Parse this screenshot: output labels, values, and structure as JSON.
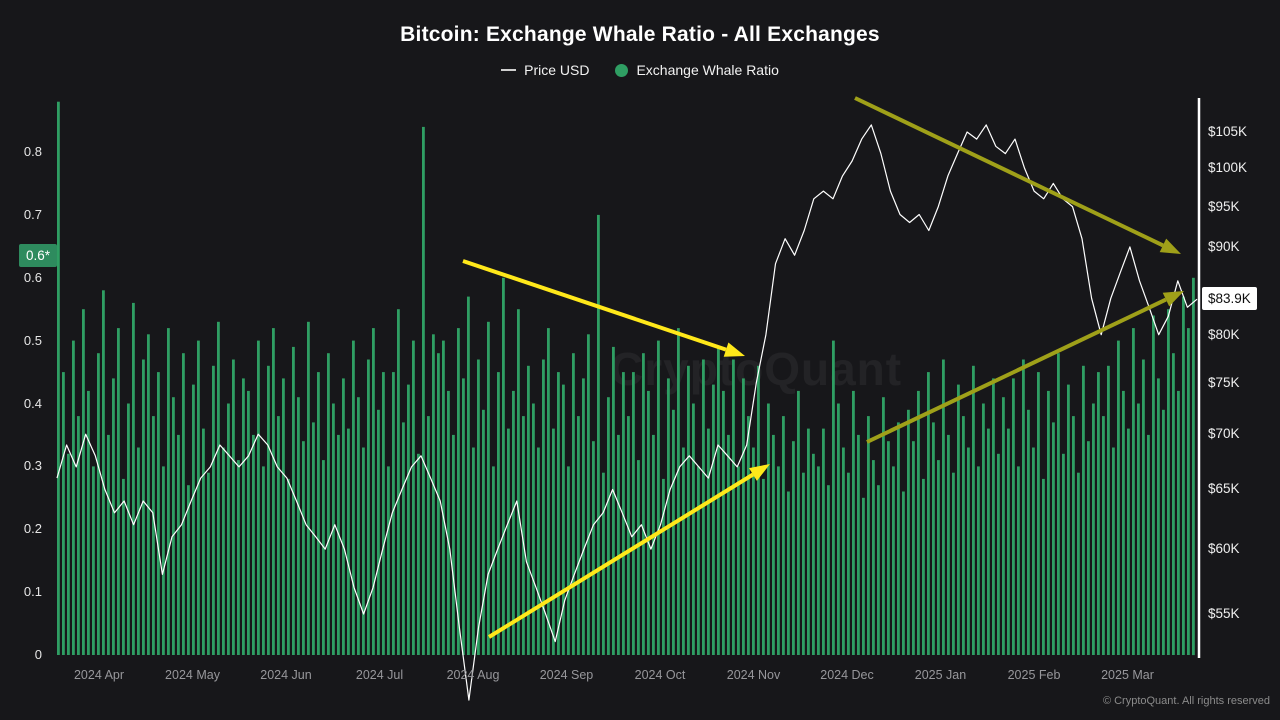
{
  "title": "Bitcoin: Exchange Whale Ratio - All Exchanges",
  "legend": {
    "price": "Price USD",
    "whale": "Exchange Whale Ratio"
  },
  "badges": {
    "ratio": "0.6*",
    "price": "$83.9K"
  },
  "watermark": "CryptoQuant",
  "copyright": "© CryptoQuant. All rights reserved",
  "colors": {
    "background": "#17171a",
    "bar": "#2f9e63",
    "price_line": "#ffffff",
    "axis_line": "#ffffff",
    "yellow_arrow": "#ffe81a",
    "olive_arrow": "#9fa019",
    "ratio_badge_bg": "#2e8b5e",
    "price_badge_bg": "#ffffff"
  },
  "chart_data": {
    "type": "bar",
    "title": "Bitcoin: Exchange Whale Ratio - All Exchanges",
    "grid": false,
    "legend_position": "top",
    "x_categories": [
      "2024 Apr",
      "2024 May",
      "2024 Jun",
      "2024 Jul",
      "2024 Aug",
      "2024 Sep",
      "2024 Oct",
      "2024 Nov",
      "2024 Dec",
      "2025 Jan",
      "2025 Feb",
      "2025 Mar"
    ],
    "left_axis": {
      "label": "Exchange Whale Ratio",
      "scale": "linear",
      "range": [
        0,
        0.88
      ],
      "ticks": [
        {
          "label": "0",
          "value": 0
        },
        {
          "label": "0.1",
          "value": 0.1
        },
        {
          "label": "0.2",
          "value": 0.2
        },
        {
          "label": "0.3",
          "value": 0.3
        },
        {
          "label": "0.4",
          "value": 0.4
        },
        {
          "label": "0.5",
          "value": 0.5
        },
        {
          "label": "0.6",
          "value": 0.6
        },
        {
          "label": "0.7",
          "value": 0.7
        },
        {
          "label": "0.8",
          "value": 0.8
        }
      ]
    },
    "right_axis": {
      "label": "Price USD",
      "scale": "log",
      "range_usd_k": [
        53,
        108
      ],
      "ticks": [
        {
          "label": "$105K",
          "value": 105
        },
        {
          "label": "$100K",
          "value": 100
        },
        {
          "label": "$95K",
          "value": 95
        },
        {
          "label": "$90K",
          "value": 90
        },
        {
          "label": "$80K",
          "value": 80
        },
        {
          "label": "$75K",
          "value": 75
        },
        {
          "label": "$70K",
          "value": 70
        },
        {
          "label": "$65K",
          "value": 65
        },
        {
          "label": "$60K",
          "value": 60
        },
        {
          "label": "$55K",
          "value": 55
        }
      ]
    },
    "latest": {
      "whale_ratio": 0.635,
      "price_usd_k": 83.9
    },
    "series": [
      {
        "name": "Exchange Whale Ratio",
        "type": "bar",
        "axis": "left",
        "values": [
          0.88,
          0.45,
          0.32,
          0.5,
          0.38,
          0.55,
          0.42,
          0.3,
          0.48,
          0.58,
          0.35,
          0.44,
          0.52,
          0.28,
          0.4,
          0.56,
          0.33,
          0.47,
          0.51,
          0.38,
          0.45,
          0.3,
          0.52,
          0.41,
          0.35,
          0.48,
          0.27,
          0.43,
          0.5,
          0.36,
          0.29,
          0.46,
          0.53,
          0.33,
          0.4,
          0.47,
          0.31,
          0.44,
          0.42,
          0.35,
          0.5,
          0.3,
          0.46,
          0.52,
          0.38,
          0.44,
          0.28,
          0.49,
          0.41,
          0.34,
          0.53,
          0.37,
          0.45,
          0.31,
          0.48,
          0.4,
          0.35,
          0.44,
          0.36,
          0.5,
          0.41,
          0.33,
          0.47,
          0.52,
          0.39,
          0.45,
          0.3,
          0.45,
          0.55,
          0.37,
          0.43,
          0.5,
          0.32,
          0.84,
          0.38,
          0.51,
          0.48,
          0.5,
          0.42,
          0.35,
          0.52,
          0.44,
          0.57,
          0.33,
          0.47,
          0.39,
          0.53,
          0.3,
          0.45,
          0.6,
          0.36,
          0.42,
          0.55,
          0.38,
          0.46,
          0.4,
          0.33,
          0.47,
          0.52,
          0.36,
          0.45,
          0.43,
          0.3,
          0.48,
          0.38,
          0.44,
          0.51,
          0.34,
          0.7,
          0.29,
          0.41,
          0.49,
          0.35,
          0.45,
          0.38,
          0.45,
          0.31,
          0.48,
          0.42,
          0.35,
          0.5,
          0.28,
          0.44,
          0.39,
          0.52,
          0.33,
          0.46,
          0.4,
          0.3,
          0.47,
          0.36,
          0.43,
          0.49,
          0.42,
          0.35,
          0.47,
          0.3,
          0.44,
          0.38,
          0.33,
          0.46,
          0.28,
          0.4,
          0.35,
          0.3,
          0.38,
          0.26,
          0.34,
          0.42,
          0.29,
          0.36,
          0.32,
          0.3,
          0.36,
          0.27,
          0.5,
          0.4,
          0.33,
          0.29,
          0.42,
          0.35,
          0.25,
          0.38,
          0.31,
          0.27,
          0.41,
          0.34,
          0.3,
          0.37,
          0.26,
          0.39,
          0.34,
          0.42,
          0.28,
          0.45,
          0.37,
          0.31,
          0.47,
          0.35,
          0.29,
          0.43,
          0.38,
          0.33,
          0.46,
          0.3,
          0.4,
          0.36,
          0.44,
          0.32,
          0.41,
          0.36,
          0.44,
          0.3,
          0.47,
          0.39,
          0.33,
          0.45,
          0.28,
          0.42,
          0.37,
          0.48,
          0.32,
          0.43,
          0.38,
          0.29,
          0.46,
          0.34,
          0.4,
          0.45,
          0.38,
          0.46,
          0.33,
          0.5,
          0.42,
          0.36,
          0.52,
          0.4,
          0.47,
          0.35,
          0.54,
          0.44,
          0.39,
          0.55,
          0.48,
          0.42,
          0.57,
          0.52,
          0.6
        ]
      },
      {
        "name": "Price USD",
        "type": "line",
        "axis": "right",
        "values_usd_k": [
          66,
          69,
          67,
          70,
          68,
          65,
          63,
          64,
          62,
          64,
          63,
          58,
          61,
          62,
          64,
          66,
          67,
          69,
          68,
          67,
          68,
          70,
          69,
          67,
          66,
          64,
          62,
          61,
          60,
          62,
          60,
          57,
          55,
          57,
          60,
          63,
          65,
          67,
          68,
          66,
          64,
          60,
          54,
          49,
          54,
          58,
          60,
          62,
          64,
          59,
          57,
          55,
          53,
          56,
          58,
          60,
          62,
          63,
          65,
          63,
          61,
          62,
          60,
          62,
          65,
          67,
          68,
          67,
          66,
          69,
          68,
          67,
          69,
          75,
          80,
          88,
          91,
          89,
          92,
          96,
          97,
          96,
          99,
          101,
          104,
          106,
          102,
          97,
          94,
          93,
          94,
          92,
          95,
          99,
          102,
          105,
          104,
          106,
          103,
          102,
          104,
          100,
          97,
          96,
          98,
          96,
          95,
          91,
          84,
          80,
          84,
          87,
          90,
          86,
          83,
          80,
          82,
          86,
          83,
          83.9
        ]
      }
    ],
    "annotations": [
      {
        "name": "yellow-arrow-down-left",
        "color": "#ffe81a",
        "from": [
          463,
          261
        ],
        "to": [
          745,
          356
        ]
      },
      {
        "name": "yellow-arrow-up-left",
        "color": "#ffe81a",
        "from": [
          489,
          637
        ],
        "to": [
          770,
          464
        ]
      },
      {
        "name": "olive-arrow-down-right",
        "color": "#9fa019",
        "from": [
          855,
          98
        ],
        "to": [
          1181,
          254
        ]
      },
      {
        "name": "olive-arrow-up-right",
        "color": "#9fa019",
        "from": [
          867,
          442
        ],
        "to": [
          1184,
          291
        ]
      }
    ]
  }
}
